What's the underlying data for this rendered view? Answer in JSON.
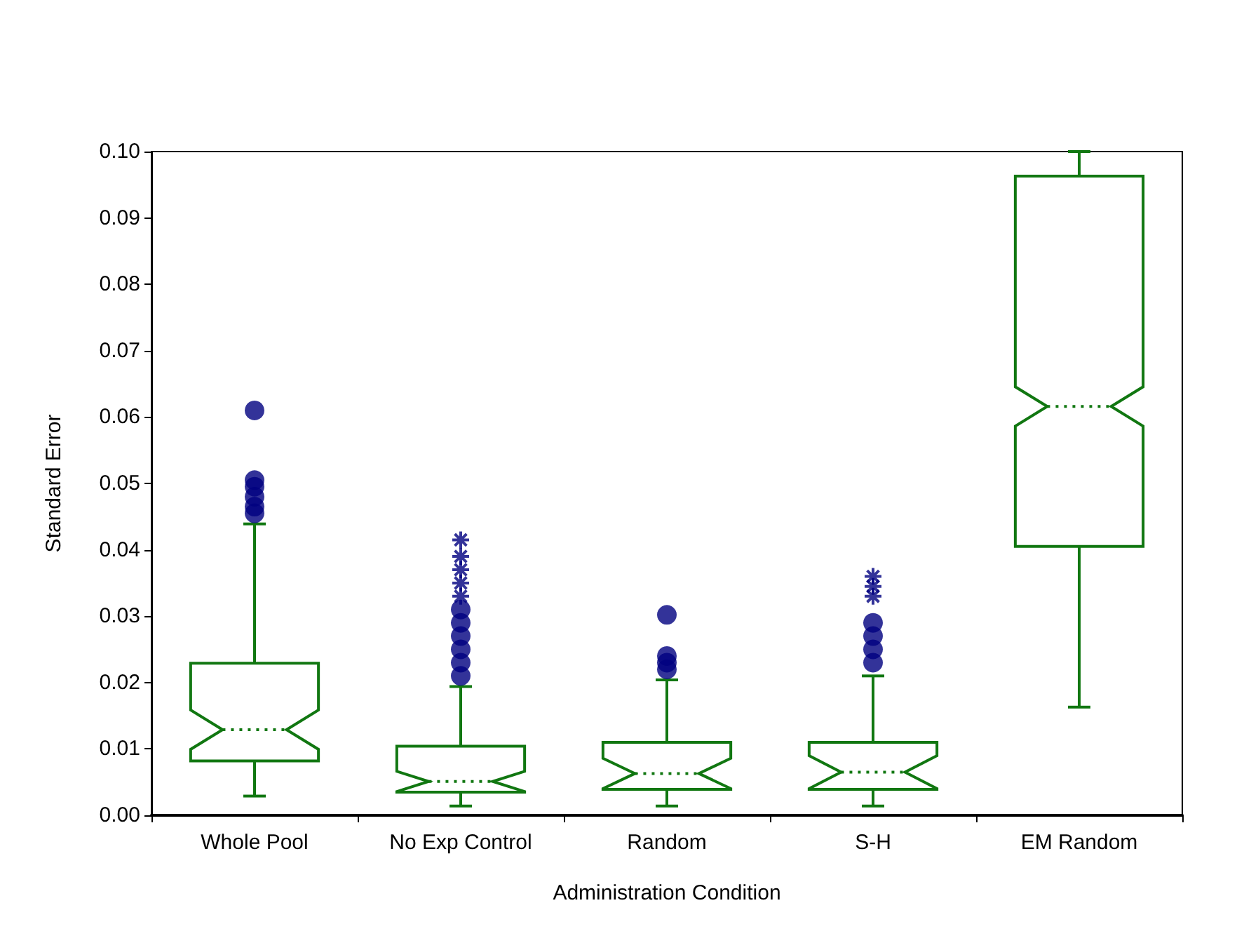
{
  "chart_data": {
    "type": "box",
    "xlabel": "Administration Condition",
    "ylabel": "Standard Error",
    "categories": [
      "Whole Pool",
      "No Exp Control",
      "Random",
      "S-H",
      "EM Random"
    ],
    "ylim": [
      0,
      0.1
    ],
    "yticks": [
      {
        "value": 0,
        "label": "0.00"
      },
      {
        "value": 0.01,
        "label": "0.01"
      },
      {
        "value": 0.02,
        "label": "0.02"
      },
      {
        "value": 0.03,
        "label": "0.03"
      },
      {
        "value": 0.04,
        "label": "0.04"
      },
      {
        "value": 0.05,
        "label": "0.05"
      },
      {
        "value": 0.06,
        "label": "0.06"
      },
      {
        "value": 0.07,
        "label": "0.07"
      },
      {
        "value": 0.08,
        "label": "0.08"
      },
      {
        "value": 0.09,
        "label": "0.09"
      },
      {
        "value": 0.1,
        "label": "0.10"
      }
    ],
    "grid": false,
    "series": [
      {
        "color": "#117711",
        "boxes": [
          {
            "low": 0.0029,
            "q1": 0.0082,
            "median": 0.0129,
            "q3": 0.0229,
            "high": 0.0439,
            "outliers": [
              0.0455,
              0.0465,
              0.048,
              0.0495,
              0.0505,
              0.061
            ]
          },
          {
            "low": 0.0014,
            "q1": 0.0035,
            "median": 0.0051,
            "q3": 0.0104,
            "high": 0.0194,
            "outliers": [
              0.021,
              0.023,
              0.025,
              0.027,
              0.029,
              0.031,
              0.033,
              0.035,
              0.037,
              0.039,
              0.0415
            ]
          },
          {
            "low": 0.0014,
            "q1": 0.0039,
            "median": 0.0063,
            "q3": 0.011,
            "high": 0.0204,
            "outliers": [
              0.022,
              0.023,
              0.024,
              0.0302
            ]
          },
          {
            "low": 0.0014,
            "q1": 0.0039,
            "median": 0.0065,
            "q3": 0.011,
            "high": 0.021,
            "outliers": [
              0.023,
              0.025,
              0.027,
              0.029,
              0.033,
              0.0345,
              0.036
            ]
          },
          {
            "low": 0.0163,
            "q1": 0.0405,
            "median": 0.0616,
            "q3": 0.0963,
            "high": 0.1
          }
        ]
      }
    ]
  }
}
